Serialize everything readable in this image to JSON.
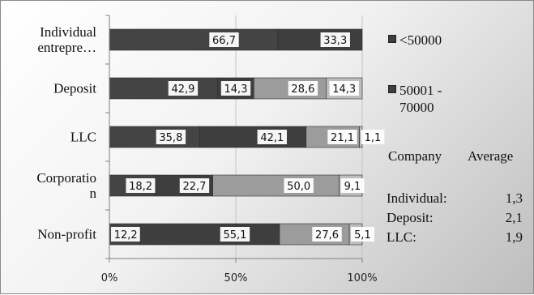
{
  "chart_data": {
    "type": "bar",
    "stacked": "percent",
    "orientation": "horizontal",
    "categories": [
      "Individual entrepre…",
      "Deposit",
      "LLC",
      "Corporatio n",
      "Non-profit"
    ],
    "category_lines": [
      [
        "Individual",
        "entrepre…"
      ],
      [
        "Deposit"
      ],
      [
        "LLC"
      ],
      [
        "Corporatio",
        "n"
      ],
      [
        "Non-profit"
      ]
    ],
    "segments": [
      [
        66.7,
        33.3
      ],
      [
        42.9,
        14.3,
        28.6,
        14.3
      ],
      [
        35.8,
        42.1,
        21.1,
        1.1
      ],
      [
        18.2,
        22.7,
        50.0,
        9.1
      ],
      [
        12.2,
        55.1,
        27.6,
        5.1
      ]
    ],
    "segment_labels": [
      [
        "66,7",
        "33,3"
      ],
      [
        "42,9",
        "14,3",
        "28,6",
        "14,3"
      ],
      [
        "35,8",
        "42,1",
        "21,1",
        "1,1"
      ],
      [
        "18,2",
        "22,7",
        "50,0",
        "9,1"
      ],
      [
        "12,2",
        "55,1",
        "27,6",
        "5,1"
      ]
    ],
    "segment_colors": [
      "#444444",
      "#3e3e3e",
      "#9c9c9c",
      "#bdbdbd"
    ],
    "x_ticks": [
      "0%",
      "50%",
      "100%"
    ],
    "xlim": [
      0,
      100
    ],
    "grid": true,
    "legend": {
      "placement": "right",
      "entries": [
        {
          "name": "<50000",
          "color": "#3e3e3e"
        },
        {
          "name": "50001 - 70000",
          "color": "#3e3e3e",
          "lines": [
            "50001 -",
            "70000"
          ]
        }
      ]
    }
  },
  "averages": {
    "headers": [
      "Company",
      "Average"
    ],
    "rows": [
      {
        "name": "Individual:",
        "value": "1,3"
      },
      {
        "name": "Deposit:",
        "value": "2,1"
      },
      {
        "name": "LLC:",
        "value": "1,9"
      }
    ]
  }
}
